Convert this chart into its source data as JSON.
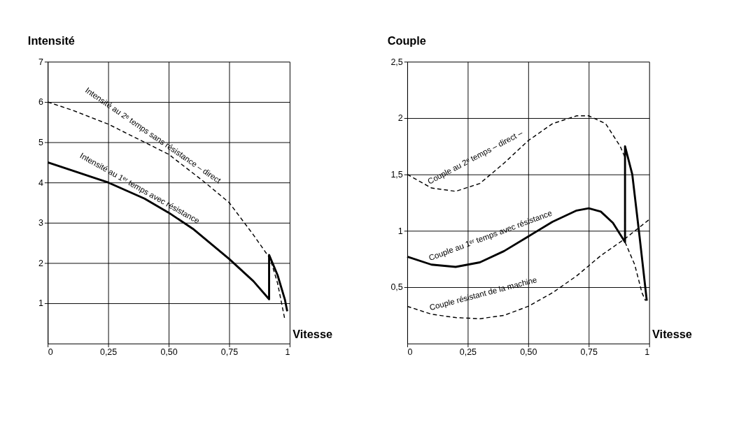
{
  "chart_data": [
    {
      "type": "line",
      "xlabel": "Vitesse",
      "ylabel": "Intensité",
      "xlim": [
        0,
        1
      ],
      "ylim": [
        0,
        7
      ],
      "xticks": [
        0,
        {
          "value": 0.25,
          "label": "0,25"
        },
        {
          "value": 0.5,
          "label": "0,50"
        },
        {
          "value": 0.75,
          "label": "0,75"
        },
        1
      ],
      "yticks": [
        1,
        2,
        3,
        4,
        5,
        6,
        7
      ],
      "grid": true,
      "series": [
        {
          "name": "Intensité au 2ᵉ temps sans résistance – direct",
          "color": "#000000",
          "line_style": "dashed",
          "x": [
            0,
            0.1,
            0.25,
            0.4,
            0.5,
            0.65,
            0.75,
            0.85,
            0.92,
            0.95,
            0.98
          ],
          "values": [
            6,
            5.8,
            5.45,
            5.0,
            4.7,
            4.0,
            3.5,
            2.7,
            2.1,
            1.5,
            0.6
          ]
        },
        {
          "name": "Intensité au 1ᵉʳ temps avec résistance",
          "color": "#000000",
          "line_style": "solid",
          "x": [
            0,
            0.1,
            0.25,
            0.4,
            0.5,
            0.6,
            0.75,
            0.85,
            0.915,
            0.915,
            0.95,
            0.98,
            0.99
          ],
          "values": [
            4.5,
            4.3,
            4.0,
            3.6,
            3.25,
            2.85,
            2.1,
            1.55,
            1.1,
            2.2,
            1.7,
            1.1,
            0.8
          ]
        }
      ]
    },
    {
      "type": "line",
      "xlabel": "Vitesse",
      "ylabel": "Couple",
      "xlim": [
        0,
        1
      ],
      "ylim": [
        0,
        2.5
      ],
      "xticks": [
        0,
        {
          "value": 0.25,
          "label": "0,25"
        },
        {
          "value": 0.5,
          "label": "0,50"
        },
        {
          "value": 0.75,
          "label": "0,75"
        },
        1
      ],
      "yticks": [
        {
          "value": 0.5,
          "label": "0,5"
        },
        1,
        {
          "value": 1.5,
          "label": "1,5"
        },
        2,
        {
          "value": 2.5,
          "label": "2,5"
        }
      ],
      "grid": true,
      "series": [
        {
          "name": "Couple au 2ᵉ temps – direct –",
          "color": "#000000",
          "line_style": "dashed",
          "x": [
            0,
            0.1,
            0.2,
            0.3,
            0.4,
            0.5,
            0.6,
            0.7,
            0.75,
            0.82,
            0.88,
            0.9
          ],
          "values": [
            1.5,
            1.38,
            1.35,
            1.42,
            1.6,
            1.8,
            1.95,
            2.02,
            2.02,
            1.95,
            1.75,
            1.65
          ]
        },
        {
          "name": "Couple au 1ᵉʳ temps avec résistance",
          "color": "#000000",
          "line_style": "solid",
          "x": [
            0,
            0.1,
            0.2,
            0.3,
            0.4,
            0.5,
            0.6,
            0.7,
            0.75,
            0.8,
            0.85,
            0.9,
            0.9,
            0.93,
            0.96,
            0.99
          ],
          "values": [
            0.77,
            0.7,
            0.68,
            0.72,
            0.82,
            0.95,
            1.08,
            1.18,
            1.2,
            1.17,
            1.07,
            0.9,
            1.75,
            1.5,
            0.95,
            0.38
          ]
        },
        {
          "name": "Couple résistant de la machine",
          "color": "#000000",
          "line_style": "dashed",
          "x": [
            0,
            0.1,
            0.2,
            0.3,
            0.4,
            0.5,
            0.6,
            0.7,
            0.8,
            0.9,
            1.0
          ],
          "values": [
            0.33,
            0.26,
            0.23,
            0.22,
            0.25,
            0.33,
            0.45,
            0.6,
            0.78,
            0.93,
            1.1
          ]
        },
        {
          "color": "#000000",
          "line_style": "dashed",
          "x": [
            0.9,
            0.94,
            0.97,
            0.985
          ],
          "values": [
            0.9,
            0.7,
            0.45,
            0.38
          ]
        }
      ]
    }
  ]
}
